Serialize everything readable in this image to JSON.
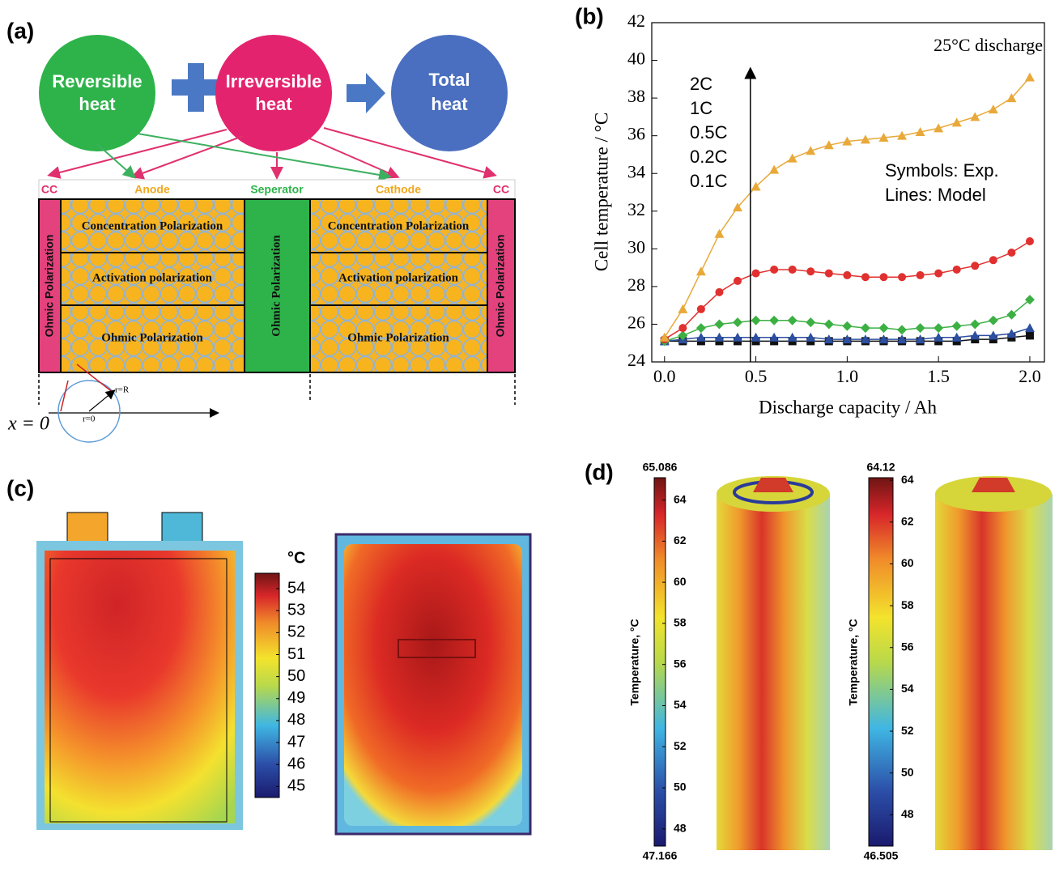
{
  "panel_a": {
    "label": "(a)",
    "reversible_heat": [
      "Reversible",
      "heat"
    ],
    "irreversible_heat": [
      "Irreversible",
      "heat"
    ],
    "total_heat": [
      "Total",
      "heat"
    ],
    "regions": [
      "CC",
      "Anode",
      "Seperator",
      "Cathode",
      "CC"
    ],
    "anode_layers": [
      "Concentration Polarization",
      "Activation polarization",
      "Ohmic Polarization"
    ],
    "cathode_layers": [
      "Concentration Polarization",
      "Activation polarization",
      "Ohmic Polarization"
    ],
    "cc_left": "Ohmic Polarization",
    "separator": "Ohmic Polarization",
    "cc_right": "Ohmic Polarization",
    "r_outer": "r=R",
    "r_inner": "r=0",
    "x_origin": "x = 0"
  },
  "chart_data": {
    "type": "line",
    "panel_label": "(b)",
    "title": "25°C discharge",
    "xlabel": "Discharge capacity / Ah",
    "ylabel": "Cell temperature / °C",
    "annotations": [
      "Symbols: Exp.",
      "Lines: Model"
    ],
    "x": [
      0,
      0.1,
      0.2,
      0.3,
      0.4,
      0.5,
      0.6,
      0.7,
      0.8,
      0.9,
      1.0,
      1.1,
      1.2,
      1.3,
      1.4,
      1.5,
      1.6,
      1.7,
      1.8,
      1.9,
      2.0
    ],
    "xlim": [
      -0.07,
      2.08
    ],
    "xticks": [
      {
        "value": 0,
        "label": "0.0"
      },
      {
        "value": 0.5,
        "label": "0.5"
      },
      {
        "value": 1,
        "label": "1.0"
      },
      {
        "value": 1.5,
        "label": "1.5"
      },
      {
        "value": 2,
        "label": "2.0"
      }
    ],
    "ylim": [
      24,
      42
    ],
    "yticks": [
      24,
      26,
      28,
      30,
      32,
      34,
      36,
      38,
      40,
      42
    ],
    "series": [
      {
        "name": "2C",
        "color": "#e8a93a",
        "marker": "triangle",
        "values": [
          25.3,
          26.8,
          28.8,
          30.8,
          32.2,
          33.3,
          34.2,
          34.8,
          35.2,
          35.5,
          35.7,
          35.8,
          35.9,
          36.0,
          36.2,
          36.4,
          36.7,
          37.0,
          37.4,
          38.0,
          39.1
        ]
      },
      {
        "name": "1C",
        "color": "#e0302f",
        "marker": "circle",
        "values": [
          25.2,
          25.8,
          26.8,
          27.7,
          28.3,
          28.7,
          28.9,
          28.9,
          28.8,
          28.7,
          28.6,
          28.5,
          28.5,
          28.5,
          28.6,
          28.7,
          28.9,
          29.1,
          29.4,
          29.8,
          30.4
        ]
      },
      {
        "name": "0.5C",
        "color": "#3cb043",
        "marker": "diamond",
        "values": [
          25.1,
          25.4,
          25.8,
          26.0,
          26.1,
          26.2,
          26.2,
          26.2,
          26.1,
          26.0,
          25.9,
          25.8,
          25.8,
          25.7,
          25.8,
          25.8,
          25.9,
          26.0,
          26.2,
          26.5,
          27.3
        ]
      },
      {
        "name": "0.2C",
        "color": "#2d4fa0",
        "marker": "triangle",
        "values": [
          25.1,
          25.2,
          25.3,
          25.3,
          25.3,
          25.3,
          25.3,
          25.3,
          25.3,
          25.2,
          25.2,
          25.2,
          25.2,
          25.2,
          25.2,
          25.3,
          25.3,
          25.4,
          25.4,
          25.5,
          25.8
        ]
      },
      {
        "name": "0.1C",
        "color": "#111111",
        "marker": "square",
        "values": [
          25.1,
          25.1,
          25.1,
          25.1,
          25.1,
          25.1,
          25.1,
          25.1,
          25.1,
          25.1,
          25.1,
          25.1,
          25.1,
          25.1,
          25.1,
          25.1,
          25.1,
          25.2,
          25.2,
          25.3,
          25.4
        ]
      }
    ]
  },
  "panel_c": {
    "label": "(c)",
    "unit": "°C",
    "colorbar": {
      "clim": [
        44.5,
        54.7
      ],
      "ticks": [
        45,
        46,
        47,
        48,
        49,
        50,
        51,
        52,
        53,
        54
      ]
    }
  },
  "panel_d": {
    "label": "(d)",
    "colorbars": [
      {
        "title": "Temperature, °C",
        "clim": [
          47.166,
          65.086
        ],
        "ticks": [
          48,
          50,
          52,
          54,
          56,
          58,
          60,
          62,
          64
        ]
      },
      {
        "title": "Temperature, °C",
        "clim": [
          46.505,
          64.12
        ],
        "ticks": [
          48,
          50,
          52,
          54,
          56,
          58,
          60,
          62,
          64
        ]
      }
    ]
  }
}
